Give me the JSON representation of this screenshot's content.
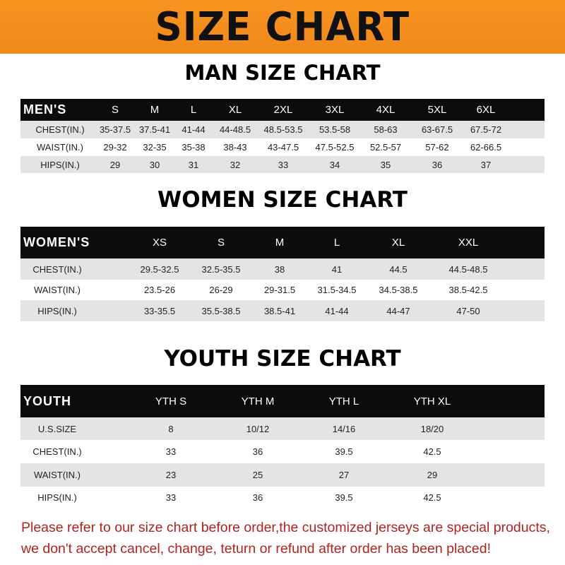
{
  "title": "SIZE CHART",
  "colors": {
    "banner": "#f7931e",
    "header_row": "#0c0c0c",
    "stripe": "#e4e4e4",
    "note": "#b0231f"
  },
  "men": {
    "heading": "MAN SIZE CHART",
    "label": "MEN'S",
    "sizes": [
      "S",
      "M",
      "L",
      "XL",
      "2XL",
      "3XL",
      "4XL",
      "5XL",
      "6XL"
    ],
    "rows": [
      {
        "label": "CHEST(IN.)",
        "values": [
          "35-37.5",
          "37.5-41",
          "41-44",
          "44-48.5",
          "48.5-53.5",
          "53.5-58",
          "58-63",
          "63-67.5",
          "67.5-72"
        ]
      },
      {
        "label": "WAIST(IN.)",
        "values": [
          "29-32",
          "32-35",
          "35-38",
          "38-43",
          "43-47.5",
          "47.5-52.5",
          "52.5-57",
          "57-62",
          "62-66.5"
        ]
      },
      {
        "label": "HIPS(IN.)",
        "values": [
          "29",
          "30",
          "31",
          "32",
          "33",
          "34",
          "35",
          "36",
          "37"
        ]
      }
    ]
  },
  "women": {
    "heading": "WOMEN SIZE CHART",
    "label": "WOMEN'S",
    "sizes": [
      "XS",
      "S",
      "M",
      "L",
      "XL",
      "XXL"
    ],
    "rows": [
      {
        "label": "CHEST(IN.)",
        "values": [
          "29.5-32.5",
          "32.5-35.5",
          "38",
          "41",
          "44.5",
          "44.5-48.5"
        ]
      },
      {
        "label": "WAIST(IN.)",
        "values": [
          "23.5-26",
          "26-29",
          "29-31.5",
          "31.5-34.5",
          "34.5-38.5",
          "38.5-42.5"
        ]
      },
      {
        "label": "HIPS(IN.)",
        "values": [
          "33-35.5",
          "35.5-38.5",
          "38.5-41",
          "41-44",
          "44-47",
          "47-50"
        ]
      }
    ]
  },
  "youth": {
    "heading": "YOUTH SIZE CHART",
    "label": "YOUTH",
    "sizes": [
      "YTH S",
      "YTH M",
      "YTH L",
      "YTH XL"
    ],
    "rows": [
      {
        "label": "U.S.SIZE",
        "values": [
          "8",
          "10/12",
          "14/16",
          "18/20"
        ]
      },
      {
        "label": "CHEST(IN.)",
        "values": [
          "33",
          "36",
          "39.5",
          "42.5"
        ]
      },
      {
        "label": "WAIST(IN.)",
        "values": [
          "23",
          "25",
          "27",
          "29"
        ]
      },
      {
        "label": "HIPS(IN.)",
        "values": [
          "33",
          "36",
          "39.5",
          "42.5"
        ]
      }
    ]
  },
  "note": [
    "Please refer to our size chart before order,the customized jerseys are special products,",
    "we don't accept cancel, change, teturn or refund after order has been placed!"
  ]
}
